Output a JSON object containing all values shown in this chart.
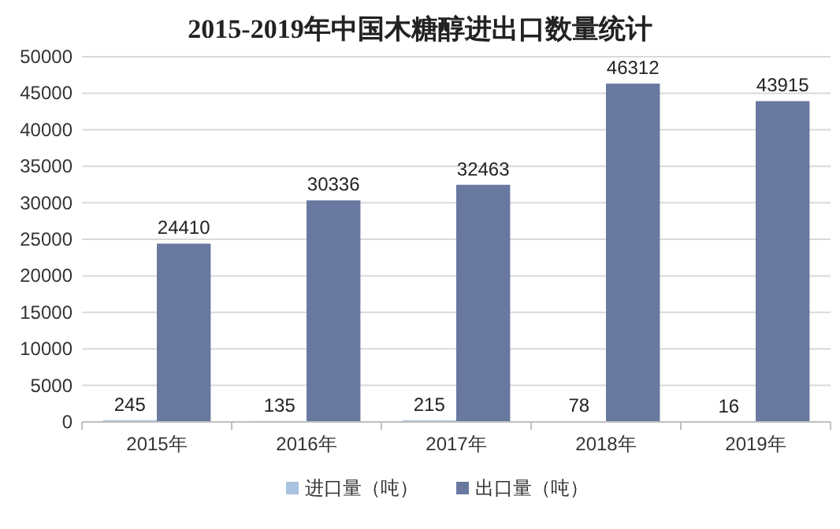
{
  "chart_data": {
    "type": "bar",
    "title": "2015-2019年中国木糖醇进出口数量统计",
    "categories": [
      "2015年",
      "2016年",
      "2017年",
      "2018年",
      "2019年"
    ],
    "series": [
      {
        "name": "进口量（吨）",
        "color": "#a9c4e0",
        "values": [
          245,
          135,
          215,
          78,
          16
        ]
      },
      {
        "name": "出口量（吨）",
        "color": "#68789f",
        "values": [
          24410,
          30336,
          32463,
          46312,
          43915
        ]
      }
    ],
    "ylim": [
      0,
      50000
    ],
    "yticks": [
      0,
      5000,
      10000,
      15000,
      20000,
      25000,
      30000,
      35000,
      40000,
      45000,
      50000
    ],
    "grid": "y",
    "data_labels": true,
    "legend": "bottom"
  }
}
